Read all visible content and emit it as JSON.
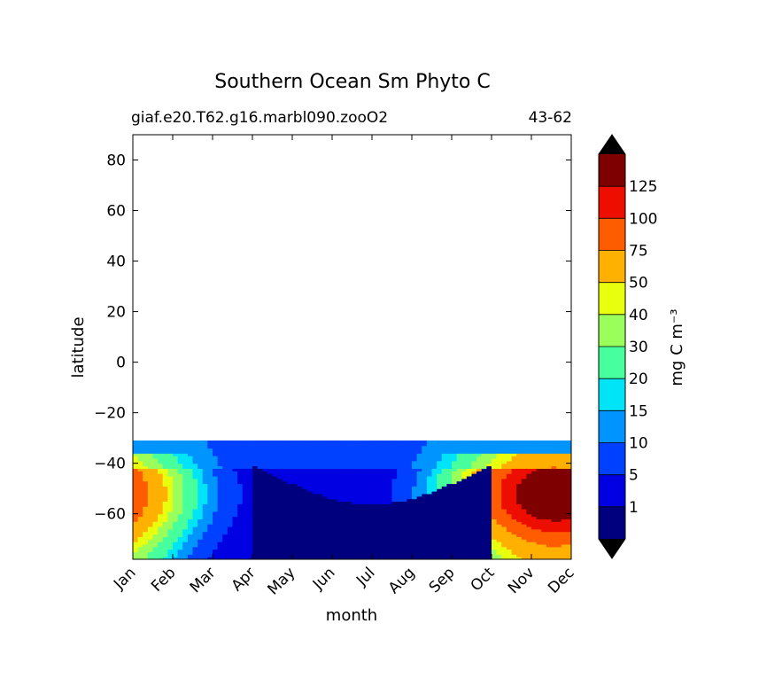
{
  "chart_data": {
    "type": "heatmap",
    "title": "Southern Ocean Sm Phyto C",
    "subtitle_left": "giaf.e20.T62.g16.marbl090.zooO2",
    "subtitle_right": "43-62",
    "xlabel": "month",
    "ylabel": "latitude",
    "x_ticks": [
      "Jan",
      "Feb",
      "Mar",
      "Apr",
      "May",
      "Jun",
      "Jul",
      "Aug",
      "Sep",
      "Oct",
      "Nov",
      "Dec"
    ],
    "xlim": [
      0,
      11
    ],
    "ylim": [
      -78,
      90
    ],
    "y_ticks": [
      {
        "v": 80,
        "label": "80"
      },
      {
        "v": 60,
        "label": "60"
      },
      {
        "v": 40,
        "label": "40"
      },
      {
        "v": 20,
        "label": "20"
      },
      {
        "v": 0,
        "label": "0"
      },
      {
        "v": -20,
        "label": "−20"
      },
      {
        "v": -40,
        "label": "−40"
      },
      {
        "v": -60,
        "label": "−60"
      }
    ],
    "data_lat_range": [
      -78,
      -31
    ],
    "colorbar": {
      "label": "mg C m⁻³",
      "extend": "both",
      "levels": [
        "1",
        "5",
        "10",
        "15",
        "20",
        "30",
        "40",
        "50",
        "75",
        "100",
        "125"
      ],
      "colors": [
        "#00007f",
        "#0000e3",
        "#0040ff",
        "#0094ff",
        "#00e4f8",
        "#48ff9e",
        "#9bff5b",
        "#e8ff0e",
        "#ffb000",
        "#ff5c00",
        "#ed0e00",
        "#7f0000"
      ],
      "under_color": "#000000",
      "over_color": "#000000"
    }
  }
}
